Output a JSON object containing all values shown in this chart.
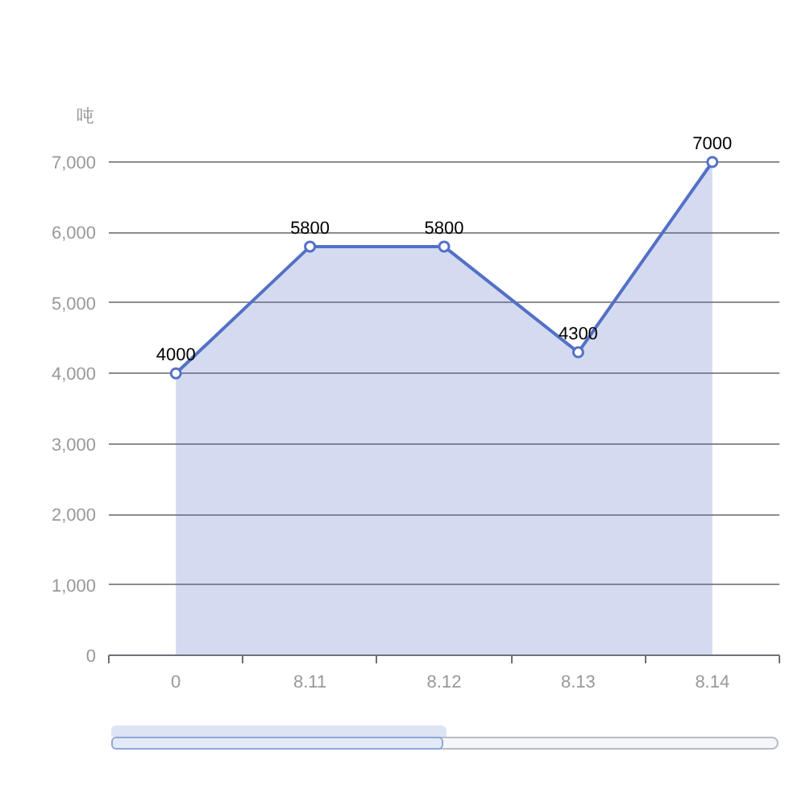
{
  "chart_data": {
    "type": "area",
    "ylabel": "吨",
    "categories": [
      "0",
      "8.11",
      "8.12",
      "8.13",
      "8.14"
    ],
    "series": [
      {
        "color": "#5470c6",
        "values": [
          4000,
          5800,
          5800,
          4300,
          7000
        ]
      }
    ],
    "ylim": [
      0,
      7000
    ],
    "yticks": [
      0,
      {
        "value": 1000,
        "label": "1,000"
      },
      {
        "value": 2000,
        "label": "2,000"
      },
      {
        "value": 3000,
        "label": "3,000"
      },
      {
        "value": 4000,
        "label": "4,000"
      },
      {
        "value": 5000,
        "label": "5,000"
      },
      {
        "value": 6000,
        "label": "6,000"
      },
      {
        "value": 7000,
        "label": "7,000"
      }
    ],
    "grid": "y",
    "marker": "circle",
    "data_labels": true
  }
}
